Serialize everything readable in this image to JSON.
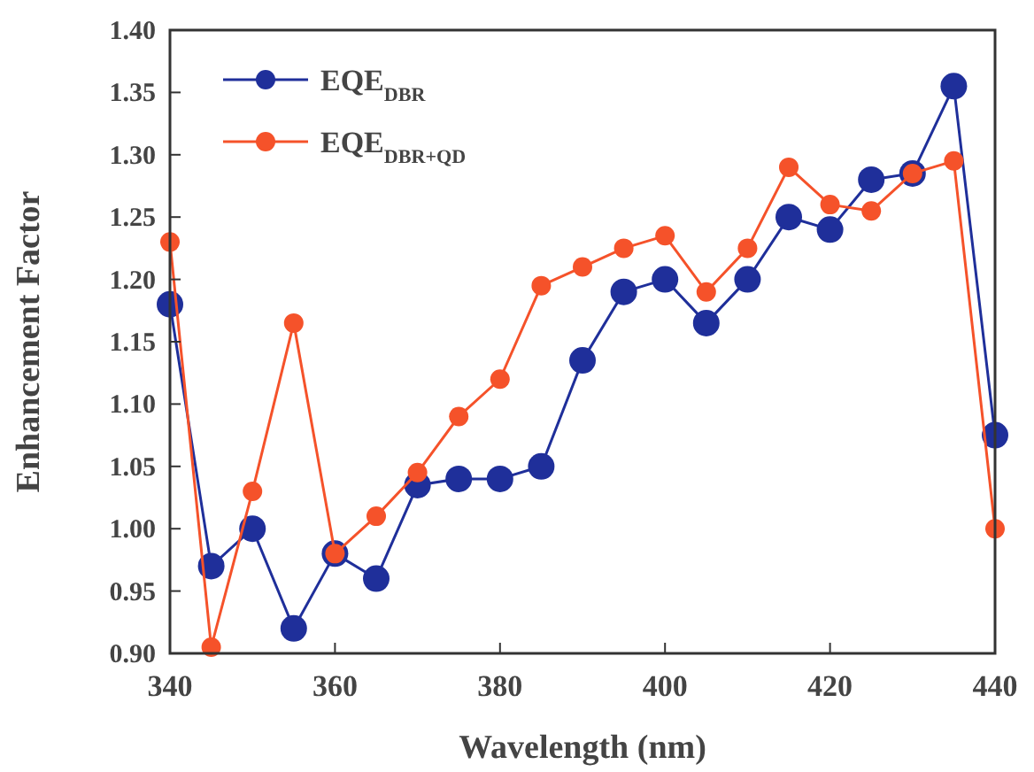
{
  "chart_data": {
    "type": "line",
    "xlabel": "Wavelength (nm)",
    "ylabel": "Enhancement Factor",
    "x": [
      340,
      345,
      350,
      355,
      360,
      365,
      370,
      375,
      380,
      385,
      390,
      395,
      400,
      405,
      410,
      415,
      420,
      425,
      430,
      435,
      440
    ],
    "series": [
      {
        "name": "EQE$_{DBR}$",
        "color": "#1f2f9a",
        "values": [
          1.18,
          0.97,
          1.0,
          0.92,
          0.98,
          0.96,
          1.035,
          1.04,
          1.04,
          1.05,
          1.135,
          1.19,
          1.2,
          1.165,
          1.2,
          1.25,
          1.24,
          1.28,
          1.285,
          1.355,
          1.075
        ]
      },
      {
        "name": "EQE$_{DBR+QD}$",
        "color": "#f5522a",
        "values": [
          1.23,
          0.905,
          1.03,
          1.165,
          0.98,
          1.01,
          1.045,
          1.09,
          1.12,
          1.195,
          1.21,
          1.225,
          1.235,
          1.19,
          1.225,
          1.29,
          1.26,
          1.255,
          1.285,
          1.295,
          1.0
        ]
      }
    ],
    "xlim": [
      340,
      440
    ],
    "xticks": [
      340,
      360,
      380,
      400,
      420,
      440
    ],
    "ylim": [
      0.9,
      1.4
    ],
    "yticks": [
      {
        "value": 0.9,
        "label": "0.90"
      },
      {
        "value": 0.95,
        "label": "0.95"
      },
      {
        "value": 1.0,
        "label": "1.00"
      },
      {
        "value": 1.05,
        "label": "1.05"
      },
      {
        "value": 1.1,
        "label": "1.10"
      },
      {
        "value": 1.15,
        "label": "1.15"
      },
      {
        "value": 1.2,
        "label": "1.20"
      },
      {
        "value": 1.25,
        "label": "1.25"
      },
      {
        "value": 1.3,
        "label": "1.30"
      },
      {
        "value": 1.35,
        "label": "1.35"
      },
      {
        "value": 1.4,
        "label": "1.40"
      }
    ],
    "legend": "top left",
    "marker": "circle",
    "line_style": "solid",
    "grid": false
  }
}
